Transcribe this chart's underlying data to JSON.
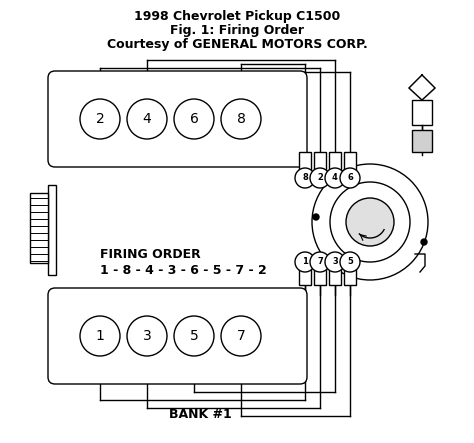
{
  "title_line1": "1998 Chevrolet Pickup C1500",
  "title_line2": "Fig. 1: Firing Order",
  "title_line3": "Courtesy of GENERAL MOTORS CORP.",
  "firing_order_label": "FIRING ORDER",
  "firing_order": "1 - 8 - 4 - 3 - 6 - 5 - 7 - 2",
  "bank_label": "BANK #1",
  "bg_color": "#ffffff",
  "line_color": "#000000",
  "fig_width": 4.74,
  "fig_height": 4.43,
  "dpi": 100,
  "bank2_cylinders": [
    "2",
    "4",
    "6",
    "8"
  ],
  "bank1_cylinders": [
    "1",
    "3",
    "5",
    "7"
  ],
  "dist_top_labels": [
    "8",
    "2",
    "4",
    "6"
  ],
  "dist_bot_labels": [
    "1",
    "7",
    "3",
    "5"
  ]
}
